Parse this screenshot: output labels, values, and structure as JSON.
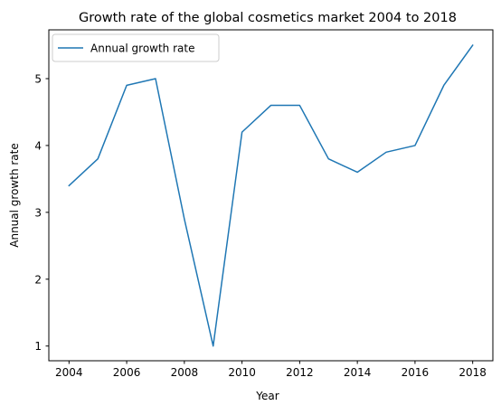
{
  "chart_data": {
    "type": "line",
    "title": "Growth rate of the global cosmetics market 2004 to 2018",
    "xlabel": "Year",
    "ylabel": "Annual growth rate",
    "xlim": [
      2003.3,
      2018.7
    ],
    "ylim": [
      0.78,
      5.73
    ],
    "xticks": [
      2004,
      2006,
      2008,
      2010,
      2012,
      2014,
      2016,
      2018
    ],
    "yticks": [
      1,
      2,
      3,
      4,
      5
    ],
    "grid": false,
    "legend": {
      "position": "top-left",
      "entries": [
        "Annual growth rate"
      ]
    },
    "series": [
      {
        "name": "Annual growth rate",
        "color": "#1f77b4",
        "x": [
          2004,
          2005,
          2006,
          2007,
          2008,
          2009,
          2010,
          2011,
          2012,
          2013,
          2014,
          2015,
          2016,
          2017,
          2018
        ],
        "y": [
          3.4,
          3.8,
          4.9,
          5.0,
          2.9,
          1.0,
          4.2,
          4.6,
          4.6,
          3.8,
          3.6,
          3.9,
          4.0,
          4.9,
          5.5
        ]
      }
    ]
  }
}
